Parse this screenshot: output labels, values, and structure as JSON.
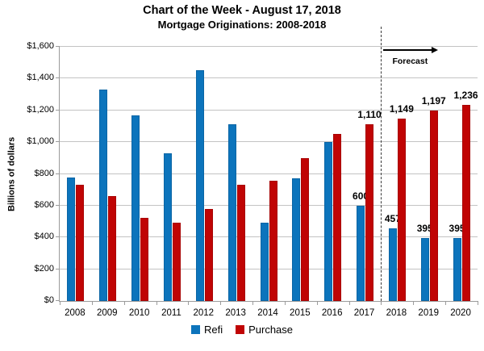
{
  "chart_data": {
    "type": "bar",
    "title": "Chart of the Week - August 17, 2018",
    "subtitle": "Mortgage Originations: 2008-2018",
    "ylabel": "Billions of dollars",
    "ylim": [
      0,
      1600
    ],
    "ytick_step": 200,
    "ytick_labels": [
      "$0",
      "$200",
      "$400",
      "$600",
      "$800",
      "$1,000",
      "$1,200",
      "$1,400",
      "$1,600"
    ],
    "categories": [
      "2008",
      "2009",
      "2010",
      "2011",
      "2012",
      "2013",
      "2014",
      "2015",
      "2016",
      "2017",
      "2018",
      "2019",
      "2020"
    ],
    "series": [
      {
        "name": "Refi",
        "color": "#0c74bc",
        "values": [
          775,
          1330,
          1170,
          930,
          1455,
          1110,
          495,
          770,
          1000,
          600,
          457,
          395,
          395
        ],
        "data_labels": [
          "",
          "",
          "",
          "",
          "",
          "",
          "",
          "",
          "",
          "600",
          "457",
          "395",
          "395"
        ]
      },
      {
        "name": "Purchase",
        "color": "#c00404",
        "values": [
          730,
          660,
          525,
          495,
          580,
          730,
          755,
          900,
          1050,
          1110,
          1149,
          1197,
          1236
        ],
        "data_labels": [
          "",
          "",
          "",
          "",
          "",
          "",
          "",
          "",
          "",
          "1,110",
          "1,149",
          "1,197",
          "1,236"
        ]
      }
    ],
    "legend": {
      "position": "bottom",
      "entries": [
        "Refi",
        "Purchase"
      ]
    },
    "annotations": {
      "forecast_label": "Forecast",
      "divider_after_category": "2017"
    },
    "grid": true,
    "axis_color": "#9b9b9b",
    "gridline_color": "#c3c3c3"
  }
}
